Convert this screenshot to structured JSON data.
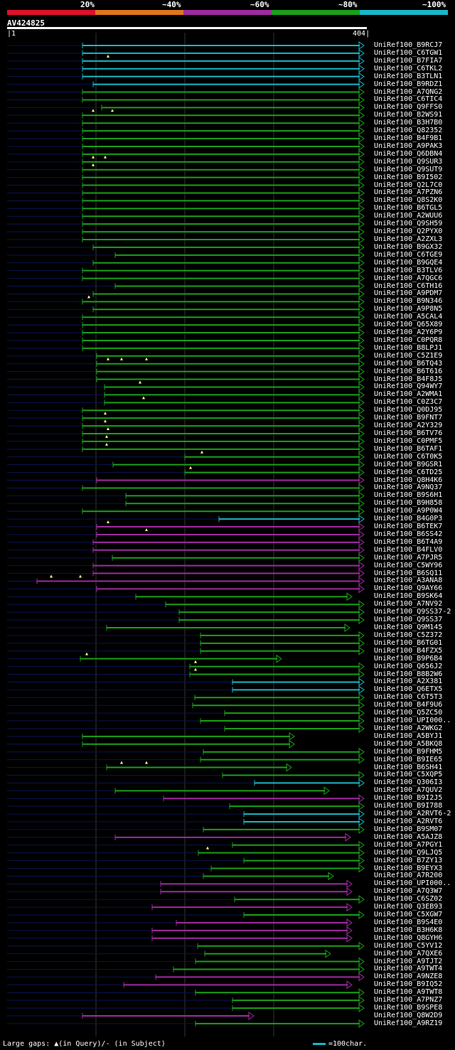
{
  "legend": {
    "labels": [
      "20%",
      "~40%",
      "~60%",
      "~80%",
      "~100%"
    ],
    "colors": [
      "#e0102a",
      "#e0761a",
      "#a02aa0",
      "#1aa01a",
      "#18b8c8"
    ]
  },
  "query": {
    "name": "AV424825",
    "start": "1",
    "end": "404"
  },
  "colors": {
    "cyan": "#18b8c8",
    "green": "#1aa01a",
    "magenta": "#a02aa0",
    "faint": "#0a1450",
    "grid": "#333333"
  },
  "hits": [
    {
      "label": "UniRef100_B9RCJ7",
      "c": "cyan",
      "s": 116,
      "e": 512,
      "a": "tri",
      "m": []
    },
    {
      "label": "UniRef100_C6TGW1",
      "c": "cyan",
      "s": 116,
      "e": 512,
      "a": "tri",
      "m": []
    },
    {
      "label": "UniRef100_B7FIA7",
      "c": "cyan",
      "s": 116,
      "e": 512,
      "a": "tri",
      "m": [
        152
      ]
    },
    {
      "label": "UniRef100_C6TKL2",
      "c": "cyan",
      "s": 116,
      "e": 512,
      "a": "tri",
      "m": []
    },
    {
      "label": "UniRef100_B3TLN1",
      "c": "cyan",
      "s": 116,
      "e": 512,
      "a": "tri",
      "m": []
    },
    {
      "label": "UniRef100_B9RDZ1",
      "c": "cyan",
      "s": 131,
      "e": 512,
      "a": "tri",
      "m": []
    },
    {
      "label": "UniRef100_A7QNG2",
      "c": "green",
      "s": 116,
      "e": 512,
      "a": "tri",
      "m": []
    },
    {
      "label": "UniRef100_C6TIC4",
      "c": "green",
      "s": 116,
      "e": 512,
      "a": "tri",
      "m": []
    },
    {
      "label": "UniRef100_Q9FFS0",
      "c": "green",
      "s": 143,
      "e": 512,
      "a": "tri",
      "m": []
    },
    {
      "label": "UniRef100_B2WS91",
      "c": "green",
      "s": 116,
      "e": 512,
      "a": "tri",
      "m": [
        131,
        158
      ]
    },
    {
      "label": "UniRef100_B3H7B0",
      "c": "green",
      "s": 116,
      "e": 512,
      "a": "tri",
      "m": []
    },
    {
      "label": "UniRef100_Q82352",
      "c": "green",
      "s": 116,
      "e": 512,
      "a": "tri",
      "m": []
    },
    {
      "label": "UniRef100_B4F9B1",
      "c": "green",
      "s": 116,
      "e": 512,
      "a": "tri",
      "m": []
    },
    {
      "label": "UniRef100_A9PAK3",
      "c": "green",
      "s": 116,
      "e": 512,
      "a": "tri",
      "m": []
    },
    {
      "label": "UniRef100_Q6DBN4",
      "c": "green",
      "s": 116,
      "e": 512,
      "a": "tri",
      "m": []
    },
    {
      "label": "UniRef100_Q9SUR3",
      "c": "green",
      "s": 116,
      "e": 512,
      "a": "tri",
      "m": [
        131,
        148
      ]
    },
    {
      "label": "UniRef100_Q9SUT9",
      "c": "green",
      "s": 116,
      "e": 512,
      "a": "tri",
      "m": [
        131
      ]
    },
    {
      "label": "UniRef100_B9I502",
      "c": "green",
      "s": 116,
      "e": 512,
      "a": "tri",
      "m": []
    },
    {
      "label": "UniRef100_Q2L7C0",
      "c": "green",
      "s": 116,
      "e": 512,
      "a": "tri",
      "m": []
    },
    {
      "label": "UniRef100_A7PZN6",
      "c": "green",
      "s": 116,
      "e": 512,
      "a": "tri",
      "m": []
    },
    {
      "label": "UniRef100_Q8S2K0",
      "c": "green",
      "s": 116,
      "e": 512,
      "a": "tri",
      "m": []
    },
    {
      "label": "UniRef100_B6TGL5",
      "c": "green",
      "s": 116,
      "e": 512,
      "a": "tri",
      "m": []
    },
    {
      "label": "UniRef100_A2WUU6",
      "c": "green",
      "s": 116,
      "e": 512,
      "a": "tri",
      "m": []
    },
    {
      "label": "UniRef100_Q9SH59",
      "c": "green",
      "s": 116,
      "e": 512,
      "a": "tri",
      "m": []
    },
    {
      "label": "UniRef100_Q2PYX0",
      "c": "green",
      "s": 116,
      "e": 512,
      "a": "tri",
      "m": []
    },
    {
      "label": "UniRef100_A2ZXL3",
      "c": "green",
      "s": 116,
      "e": 512,
      "a": "tri",
      "m": []
    },
    {
      "label": "UniRef100_B9GX32",
      "c": "green",
      "s": 131,
      "e": 512,
      "a": "tri",
      "m": []
    },
    {
      "label": "UniRef100_C6TGE9",
      "c": "green",
      "s": 162,
      "e": 512,
      "a": "tri",
      "m": []
    },
    {
      "label": "UniRef100_B9GQE4",
      "c": "green",
      "s": 131,
      "e": 512,
      "a": "tri",
      "m": []
    },
    {
      "label": "UniRef100_B3TLV6",
      "c": "green",
      "s": 116,
      "e": 512,
      "a": "tri",
      "m": []
    },
    {
      "label": "UniRef100_A7QGC6",
      "c": "green",
      "s": 116,
      "e": 512,
      "a": "tri",
      "m": []
    },
    {
      "label": "UniRef100_C6TH16",
      "c": "green",
      "s": 162,
      "e": 512,
      "a": "tri",
      "m": []
    },
    {
      "label": "UniRef100_A9PDM7",
      "c": "green",
      "s": 131,
      "e": 512,
      "a": "tri",
      "m": []
    },
    {
      "label": "UniRef100_B9N346",
      "c": "green",
      "s": 116,
      "e": 512,
      "a": "tri",
      "m": [
        125
      ]
    },
    {
      "label": "UniRef100_A9P8N5",
      "c": "green",
      "s": 131,
      "e": 512,
      "a": "tri",
      "m": []
    },
    {
      "label": "UniRef100_A5CAL4",
      "c": "green",
      "s": 116,
      "e": 512,
      "a": "tri",
      "m": []
    },
    {
      "label": "UniRef100_Q65X89",
      "c": "green",
      "s": 116,
      "e": 512,
      "a": "tri",
      "m": []
    },
    {
      "label": "UniRef100_A2Y6P9",
      "c": "green",
      "s": 116,
      "e": 512,
      "a": "tri",
      "m": []
    },
    {
      "label": "UniRef100_C0PQR8",
      "c": "green",
      "s": 116,
      "e": 512,
      "a": "tri",
      "m": []
    },
    {
      "label": "UniRef100_B8LPJ1",
      "c": "green",
      "s": 116,
      "e": 512,
      "a": "tri",
      "m": []
    },
    {
      "label": "UniRef100_C5Z1E9",
      "c": "green",
      "s": 136,
      "e": 512,
      "a": "tri",
      "m": []
    },
    {
      "label": "UniRef100_B6TQ43",
      "c": "green",
      "s": 136,
      "e": 512,
      "a": "tri",
      "m": [
        152,
        171,
        206
      ]
    },
    {
      "label": "UniRef100_B6T616",
      "c": "green",
      "s": 136,
      "e": 512,
      "a": "tri",
      "m": []
    },
    {
      "label": "UniRef100_B4F8J5",
      "c": "green",
      "s": 136,
      "e": 512,
      "a": "tri",
      "m": []
    },
    {
      "label": "UniRef100_Q94WY7",
      "c": "green",
      "s": 147,
      "e": 512,
      "a": "tri",
      "m": [
        197
      ]
    },
    {
      "label": "UniRef100_A2WMA1",
      "c": "green",
      "s": 147,
      "e": 512,
      "a": "tri",
      "m": []
    },
    {
      "label": "UniRef100_C0Z3C7",
      "c": "green",
      "s": 147,
      "e": 512,
      "a": "tri",
      "m": [
        202
      ]
    },
    {
      "label": "UniRef100_Q0DJ95",
      "c": "green",
      "s": 116,
      "e": 512,
      "a": "tri",
      "m": []
    },
    {
      "label": "UniRef100_B9FNT7",
      "c": "green",
      "s": 116,
      "e": 512,
      "a": "tri",
      "m": [
        148
      ]
    },
    {
      "label": "UniRef100_A2Y329",
      "c": "green",
      "s": 116,
      "e": 512,
      "a": "tri",
      "m": [
        148
      ]
    },
    {
      "label": "UniRef100_B6TV76",
      "c": "green",
      "s": 116,
      "e": 512,
      "a": "tri",
      "m": [
        152
      ]
    },
    {
      "label": "UniRef100_C0PMF5",
      "c": "green",
      "s": 116,
      "e": 512,
      "a": "tri",
      "m": [
        150
      ]
    },
    {
      "label": "UniRef100_B6TAF1",
      "c": "green",
      "s": 116,
      "e": 512,
      "a": "tri",
      "m": [
        150
      ]
    },
    {
      "label": "UniRef100_C6T0K5",
      "c": "green",
      "s": 260,
      "e": 512,
      "a": "tri",
      "m": [
        284
      ]
    },
    {
      "label": "UniRef100_B9GSR1",
      "c": "green",
      "s": 159,
      "e": 512,
      "a": "tri",
      "m": []
    },
    {
      "label": "UniRef100_C6TD25",
      "c": "green",
      "s": 260,
      "e": 512,
      "a": "tri",
      "m": [
        268
      ]
    },
    {
      "label": "UniRef100_Q8H4K6",
      "c": "magenta",
      "s": 136,
      "e": 512,
      "a": "tri",
      "m": []
    },
    {
      "label": "UniRef100_A9NQ37",
      "c": "green",
      "s": 116,
      "e": 512,
      "a": "tri",
      "m": []
    },
    {
      "label": "UniRef100_B9S6H1",
      "c": "green",
      "s": 177,
      "e": 512,
      "a": "tri",
      "m": []
    },
    {
      "label": "UniRef100_B9H858",
      "c": "green",
      "s": 177,
      "e": 512,
      "a": "tri",
      "m": []
    },
    {
      "label": "UniRef100_A9P0W4",
      "c": "green",
      "s": 116,
      "e": 512,
      "a": "tri",
      "m": []
    },
    {
      "label": "UniRef100_B4G0P3",
      "c": "cyan",
      "s": 308,
      "e": 512,
      "a": "tri",
      "m": []
    },
    {
      "label": "UniRef100_B6TEK7",
      "c": "magenta",
      "s": 136,
      "e": 512,
      "a": "tri",
      "m": [
        152
      ]
    },
    {
      "label": "UniRef100_B6SS42",
      "c": "magenta",
      "s": 136,
      "e": 512,
      "a": "tri",
      "m": [
        206
      ]
    },
    {
      "label": "UniRef100_B6T4A9",
      "c": "magenta",
      "s": 131,
      "e": 512,
      "a": "tri",
      "m": []
    },
    {
      "label": "UniRef100_B4FLV0",
      "c": "magenta",
      "s": 131,
      "e": 512,
      "a": "tri",
      "m": []
    },
    {
      "label": "UniRef100_A7PJR5",
      "c": "green",
      "s": 158,
      "e": 512,
      "a": "tri",
      "m": []
    },
    {
      "label": "UniRef100_C5WY96",
      "c": "magenta",
      "s": 131,
      "e": 512,
      "a": "tri",
      "m": []
    },
    {
      "label": "UniRef100_B6SQ11",
      "c": "magenta",
      "s": 131,
      "e": 512,
      "a": "tri",
      "m": []
    },
    {
      "label": "UniRef100_A3ANA8",
      "c": "magenta",
      "s": 52,
      "e": 512,
      "a": "tri",
      "m": [
        72,
        113
      ]
    },
    {
      "label": "UniRef100_Q9AY66",
      "c": "magenta",
      "s": 136,
      "e": 512,
      "a": "tri",
      "m": []
    },
    {
      "label": "UniRef100_B9SK64",
      "c": "green",
      "s": 191,
      "e": 495,
      "a": "tri",
      "m": []
    },
    {
      "label": "UniRef100_A7NV92",
      "c": "green",
      "s": 233,
      "e": 512,
      "a": "tri",
      "m": []
    },
    {
      "label": "UniRef100_Q9SS37-2",
      "c": "green",
      "s": 252,
      "e": 512,
      "a": "tri",
      "m": []
    },
    {
      "label": "UniRef100_Q9SS37",
      "c": "green",
      "s": 252,
      "e": 512,
      "a": "tri",
      "m": []
    },
    {
      "label": "UniRef100_Q9M145",
      "c": "green",
      "s": 150,
      "e": 492,
      "a": "tri",
      "m": []
    },
    {
      "label": "UniRef100_C5Z372",
      "c": "green",
      "s": 282,
      "e": 512,
      "a": "tri",
      "m": []
    },
    {
      "label": "UniRef100_B6TG01",
      "c": "green",
      "s": 282,
      "e": 512,
      "a": "tri",
      "m": []
    },
    {
      "label": "UniRef100_B4FZX5",
      "c": "green",
      "s": 282,
      "e": 512,
      "a": "tri",
      "m": []
    },
    {
      "label": "UniRef100_B9P6B4",
      "c": "green",
      "s": 113,
      "e": 396,
      "a": "tri",
      "m": [
        122
      ]
    },
    {
      "label": "UniRef100_Q656J2",
      "c": "green",
      "s": 267,
      "e": 512,
      "a": "tri",
      "m": [
        275
      ]
    },
    {
      "label": "UniRef100_B8B2W6",
      "c": "green",
      "s": 267,
      "e": 512,
      "a": "tri",
      "m": [
        275
      ]
    },
    {
      "label": "UniRef100_A2X381",
      "c": "cyan",
      "s": 327,
      "e": 512,
      "a": "tri",
      "m": []
    },
    {
      "label": "UniRef100_Q6ETX5",
      "c": "cyan",
      "s": 327,
      "e": 512,
      "a": "tri",
      "m": []
    },
    {
      "label": "UniRef100_C6T5T3",
      "c": "green",
      "s": 274,
      "e": 512,
      "a": "tri",
      "m": []
    },
    {
      "label": "UniRef100_B4F9U6",
      "c": "green",
      "s": 271,
      "e": 512,
      "a": "tri",
      "m": []
    },
    {
      "label": "UniRef100_Q5ZC50",
      "c": "green",
      "s": 316,
      "e": 512,
      "a": "tri",
      "m": []
    },
    {
      "label": "UniRef100_UPI000..",
      "c": "green",
      "s": 282,
      "e": 512,
      "a": "tri",
      "m": []
    },
    {
      "label": "UniRef100_A2WKG2",
      "c": "green",
      "s": 316,
      "e": 512,
      "a": "tri",
      "m": []
    },
    {
      "label": "UniRef100_A5BYJ1",
      "c": "green",
      "s": 116,
      "e": 414,
      "a": "tri",
      "m": []
    },
    {
      "label": "UniRef100_A5BKQ8",
      "c": "green",
      "s": 116,
      "e": 414,
      "a": "tri",
      "m": []
    },
    {
      "label": "UniRef100_B9FHM5",
      "c": "green",
      "s": 286,
      "e": 512,
      "a": "tri",
      "m": []
    },
    {
      "label": "UniRef100_B9IE65",
      "c": "green",
      "s": 282,
      "e": 512,
      "a": "tri",
      "m": []
    },
    {
      "label": "UniRef100_B6SH41",
      "c": "green",
      "s": 150,
      "e": 410,
      "a": "tri",
      "m": [
        171,
        206
      ]
    },
    {
      "label": "UniRef100_C5XQP5",
      "c": "green",
      "s": 313,
      "e": 512,
      "a": "tri",
      "m": []
    },
    {
      "label": "UniRef100_Q306I3",
      "c": "cyan",
      "s": 358,
      "e": 512,
      "a": "tri",
      "m": []
    },
    {
      "label": "UniRef100_A7QUV2",
      "c": "green",
      "s": 162,
      "e": 463,
      "a": "tri",
      "m": []
    },
    {
      "label": "UniRef100_B9I2J5",
      "c": "magenta",
      "s": 230,
      "e": 512,
      "a": "tri",
      "m": []
    },
    {
      "label": "UniRef100_B9I788",
      "c": "green",
      "s": 323,
      "e": 512,
      "a": "tri",
      "m": []
    },
    {
      "label": "UniRef100_A2RVT6-2",
      "c": "cyan",
      "s": 343,
      "e": 512,
      "a": "tri",
      "m": []
    },
    {
      "label": "UniRef100_A2RVT6",
      "c": "cyan",
      "s": 343,
      "e": 512,
      "a": "tri",
      "m": []
    },
    {
      "label": "UniRef100_B9SM07",
      "c": "green",
      "s": 286,
      "e": 512,
      "a": "tri",
      "m": []
    },
    {
      "label": "UniRef100_A5AJZ8",
      "c": "magenta",
      "s": 162,
      "e": 493,
      "a": "tri",
      "m": []
    },
    {
      "label": "UniRef100_A7PGY1",
      "c": "green",
      "s": 327,
      "e": 512,
      "a": "tri",
      "m": []
    },
    {
      "label": "UniRef100_Q9LJQ5",
      "c": "green",
      "s": 279,
      "e": 512,
      "a": "tri",
      "m": [
        292
      ]
    },
    {
      "label": "UniRef100_B7ZY13",
      "c": "green",
      "s": 343,
      "e": 512,
      "a": "tri",
      "m": []
    },
    {
      "label": "UniRef100_B9EYX3",
      "c": "green",
      "s": 297,
      "e": 512,
      "a": "tri",
      "m": []
    },
    {
      "label": "UniRef100_A7R200",
      "c": "green",
      "s": 286,
      "e": 469,
      "a": "tri",
      "m": []
    },
    {
      "label": "UniRef100_UPI000..",
      "c": "magenta",
      "s": 226,
      "e": 495,
      "a": "tri",
      "m": []
    },
    {
      "label": "UniRef100_A7Q3W7",
      "c": "magenta",
      "s": 226,
      "e": 495,
      "a": "tri",
      "m": []
    },
    {
      "label": "UniRef100_C6SZ02",
      "c": "green",
      "s": 330,
      "e": 512,
      "a": "tri",
      "m": []
    },
    {
      "label": "UniRef100_Q3EB93",
      "c": "magenta",
      "s": 214,
      "e": 495,
      "a": "tri",
      "m": []
    },
    {
      "label": "UniRef100_C5XGW7",
      "c": "green",
      "s": 343,
      "e": 512,
      "a": "tri",
      "m": []
    },
    {
      "label": "UniRef100_B9S4E0",
      "c": "magenta",
      "s": 248,
      "e": 495,
      "a": "tri",
      "m": []
    },
    {
      "label": "UniRef100_B3H6K8",
      "c": "magenta",
      "s": 214,
      "e": 495,
      "a": "tri",
      "m": []
    },
    {
      "label": "UniRef100_Q8GYH6",
      "c": "magenta",
      "s": 214,
      "e": 495,
      "a": "tri",
      "m": []
    },
    {
      "label": "UniRef100_C5YV12",
      "c": "green",
      "s": 278,
      "e": 512,
      "a": "tri",
      "m": []
    },
    {
      "label": "UniRef100_A7QXE6",
      "c": "green",
      "s": 288,
      "e": 465,
      "a": "tri",
      "m": []
    },
    {
      "label": "UniRef100_A9TJT2",
      "c": "green",
      "s": 275,
      "e": 512,
      "a": "tri",
      "m": []
    },
    {
      "label": "UniRef100_A9TWT4",
      "c": "green",
      "s": 244,
      "e": 512,
      "a": "tri",
      "m": []
    },
    {
      "label": "UniRef100_A9NZE8",
      "c": "magenta",
      "s": 219,
      "e": 512,
      "a": "tri",
      "m": []
    },
    {
      "label": "UniRef100_B9IQ52",
      "c": "magenta",
      "s": 174,
      "e": 495,
      "a": "tri",
      "m": []
    },
    {
      "label": "UniRef100_A9TWT8",
      "c": "green",
      "s": 275,
      "e": 512,
      "a": "tri",
      "m": []
    },
    {
      "label": "UniRef100_A7PNZ7",
      "c": "green",
      "s": 327,
      "e": 512,
      "a": "tri",
      "m": []
    },
    {
      "label": "UniRef100_B9SPE8",
      "c": "green",
      "s": 327,
      "e": 512,
      "a": "tri",
      "m": []
    },
    {
      "label": "UniRef100_Q8W2D9",
      "c": "magenta",
      "s": 116,
      "e": 357,
      "a": "tri",
      "m": []
    },
    {
      "label": "UniRef100_A9RZ19",
      "c": "green",
      "s": 275,
      "e": 512,
      "a": "tri",
      "m": []
    }
  ],
  "footer": {
    "left": "Large gaps: ▲(in Query)/- (in Subject)",
    "right": "=100char."
  }
}
